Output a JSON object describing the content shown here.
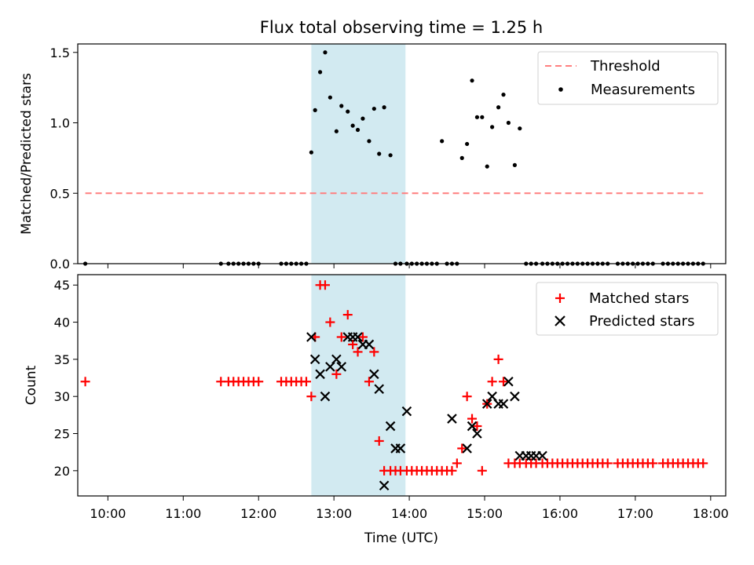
{
  "chart_data": [
    {
      "type": "scatter",
      "title": "Flux total observing time = 1.25 h",
      "ylabel": "Matched/Predicted stars",
      "xlabel": "",
      "ylim": [
        0,
        1.56
      ],
      "xlim": [
        "09:36",
        "18:12"
      ],
      "yticks": [
        "0.0",
        "0.5",
        "1.0",
        "1.5"
      ],
      "ytick_values": [
        0,
        0.5,
        1.0,
        1.5
      ],
      "grid": false,
      "legend_position": "top-right",
      "shaded_span": {
        "x0": "12:42",
        "x1": "13:57",
        "color": "#add8e6"
      },
      "threshold": {
        "name": "Threshold",
        "value": 0.5,
        "x0": "09:42",
        "x1": "17:54",
        "color": "#ff7f7f"
      },
      "series": [
        {
          "name": "Measurements",
          "color": "#000000",
          "x": [
            "09:42",
            "11:30",
            "11:36",
            "11:40",
            "11:44",
            "11:48",
            "11:52",
            "11:56",
            "12:00",
            "12:18",
            "12:22",
            "12:26",
            "12:30",
            "12:34",
            "12:38",
            "12:42",
            "12:45",
            "12:49",
            "12:53",
            "12:57",
            "13:02",
            "13:06",
            "13:11",
            "13:15",
            "13:19",
            "13:23",
            "13:28",
            "13:32",
            "13:36",
            "13:40",
            "13:45",
            "13:49",
            "13:53",
            "13:58",
            "14:02",
            "14:06",
            "14:10",
            "14:14",
            "14:18",
            "14:22",
            "14:26",
            "14:30",
            "14:34",
            "14:38",
            "14:42",
            "14:46",
            "14:50",
            "14:54",
            "14:58",
            "15:02",
            "15:06",
            "15:11",
            "15:15",
            "15:19",
            "15:24",
            "15:28",
            "15:33",
            "15:37",
            "15:41",
            "15:46",
            "15:50",
            "15:54",
            "15:58",
            "16:02",
            "16:06",
            "16:10",
            "16:14",
            "16:18",
            "16:22",
            "16:26",
            "16:30",
            "16:34",
            "16:38",
            "16:46",
            "16:50",
            "16:54",
            "16:58",
            "17:02",
            "17:06",
            "17:10",
            "17:14",
            "17:22",
            "17:26",
            "17:30",
            "17:34",
            "17:38",
            "17:42",
            "17:46",
            "17:50",
            "17:54"
          ],
          "y": [
            0,
            0,
            0,
            0,
            0,
            0,
            0,
            0,
            0,
            0,
            0,
            0,
            0,
            0,
            0,
            0.79,
            1.09,
            1.36,
            1.5,
            1.18,
            0.94,
            1.12,
            1.08,
            0.98,
            0.95,
            1.03,
            0.87,
            1.1,
            0.78,
            1.11,
            0.77,
            0,
            0,
            0,
            0,
            0,
            0,
            0,
            0,
            0,
            0.87,
            0,
            0,
            0,
            0.75,
            0.85,
            1.3,
            1.04,
            1.04,
            0.69,
            0.97,
            1.11,
            1.2,
            1.0,
            0.7,
            0.96,
            0,
            0,
            0,
            0,
            0,
            0,
            0,
            0,
            0,
            0,
            0,
            0,
            0,
            0,
            0,
            0,
            0,
            0,
            0,
            0,
            0,
            0,
            0,
            0,
            0,
            0,
            0,
            0,
            0,
            0,
            0,
            0,
            0,
            0
          ]
        }
      ]
    },
    {
      "type": "scatter",
      "title": "",
      "ylabel": "Count",
      "xlabel": "Time (UTC)",
      "ylim": [
        16.6,
        46.4
      ],
      "xlim": [
        "09:36",
        "18:12"
      ],
      "yticks": [
        "20",
        "25",
        "30",
        "35",
        "40",
        "45"
      ],
      "ytick_values": [
        20,
        25,
        30,
        35,
        40,
        45
      ],
      "xticks": [
        "10:00",
        "11:00",
        "12:00",
        "13:00",
        "14:00",
        "15:00",
        "16:00",
        "17:00",
        "18:00"
      ],
      "grid": false,
      "legend_position": "top-right",
      "shaded_span": {
        "x0": "12:42",
        "x1": "13:57",
        "color": "#add8e6"
      },
      "series": [
        {
          "name": "Matched stars",
          "marker": "plus",
          "color": "#ff0000",
          "x": [
            "09:42",
            "11:30",
            "11:36",
            "11:40",
            "11:44",
            "11:48",
            "11:52",
            "11:56",
            "12:00",
            "12:18",
            "12:22",
            "12:26",
            "12:30",
            "12:34",
            "12:38",
            "12:42",
            "12:45",
            "12:49",
            "12:53",
            "12:57",
            "13:02",
            "13:06",
            "13:11",
            "13:15",
            "13:19",
            "13:23",
            "13:28",
            "13:32",
            "13:36",
            "13:40",
            "13:45",
            "13:49",
            "13:53",
            "13:58",
            "14:02",
            "14:06",
            "14:10",
            "14:14",
            "14:18",
            "14:22",
            "14:26",
            "14:30",
            "14:34",
            "14:38",
            "14:42",
            "14:46",
            "14:50",
            "14:54",
            "14:58",
            "15:02",
            "15:06",
            "15:11",
            "15:15",
            "15:19",
            "15:24",
            "15:28",
            "15:33",
            "15:37",
            "15:41",
            "15:46",
            "15:50",
            "15:54",
            "15:58",
            "16:02",
            "16:06",
            "16:10",
            "16:14",
            "16:18",
            "16:22",
            "16:26",
            "16:30",
            "16:34",
            "16:38",
            "16:46",
            "16:50",
            "16:54",
            "16:58",
            "17:02",
            "17:06",
            "17:10",
            "17:14",
            "17:22",
            "17:26",
            "17:30",
            "17:34",
            "17:38",
            "17:42",
            "17:46",
            "17:50",
            "17:54"
          ],
          "y": [
            32,
            32,
            32,
            32,
            32,
            32,
            32,
            32,
            32,
            32,
            32,
            32,
            32,
            32,
            32,
            30,
            38,
            45,
            45,
            40,
            33,
            38,
            41,
            37,
            36,
            38,
            32,
            36,
            24,
            20,
            20,
            20,
            20,
            20,
            20,
            20,
            20,
            20,
            20,
            20,
            20,
            20,
            20,
            21,
            23,
            30,
            27,
            26,
            20,
            29,
            32,
            35,
            32,
            21,
            21,
            21,
            21,
            21,
            21,
            21,
            21,
            21,
            21,
            21,
            21,
            21,
            21,
            21,
            21,
            21,
            21,
            21,
            21,
            21,
            21,
            21,
            21,
            21,
            21,
            21,
            21,
            21,
            21,
            21,
            21,
            21,
            21,
            21,
            21,
            21
          ]
        },
        {
          "name": "Predicted stars",
          "marker": "x",
          "color": "#000000",
          "x": [
            "12:42",
            "12:45",
            "12:49",
            "12:53",
            "12:57",
            "13:02",
            "13:06",
            "13:11",
            "13:15",
            "13:19",
            "13:23",
            "13:28",
            "13:32",
            "13:36",
            "13:40",
            "13:45",
            "13:49",
            "13:53",
            "13:58",
            "14:34",
            "14:46",
            "14:50",
            "14:54",
            "15:02",
            "15:06",
            "15:11",
            "15:15",
            "15:19",
            "15:24",
            "15:28",
            "15:33",
            "15:37",
            "15:41",
            "15:46"
          ],
          "y": [
            38,
            35,
            33,
            30,
            34,
            35,
            34,
            38,
            38,
            38,
            37,
            37,
            33,
            31,
            18,
            26,
            23,
            23,
            28,
            27,
            23,
            26,
            25,
            29,
            30,
            29,
            29,
            32,
            30,
            22,
            22,
            22,
            22,
            22
          ]
        }
      ]
    }
  ]
}
